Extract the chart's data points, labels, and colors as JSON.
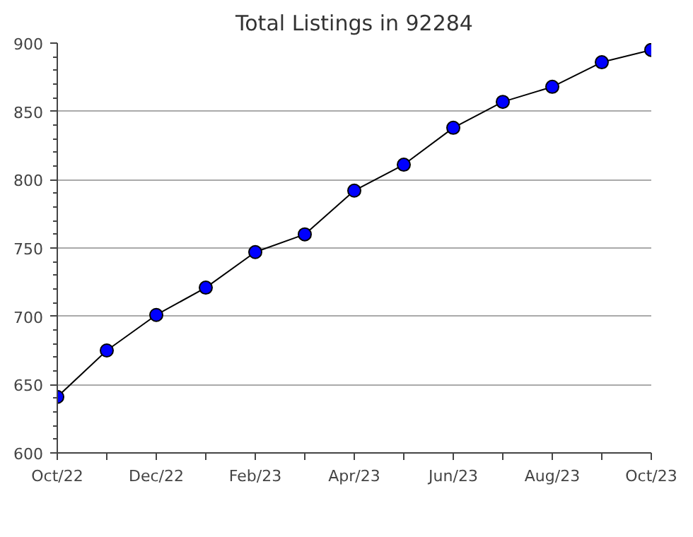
{
  "chart_data": {
    "type": "line",
    "title": "Total Listings in 92284",
    "categories": [
      "Oct/22",
      null,
      "Dec/22",
      null,
      "Feb/23",
      null,
      "Apr/23",
      null,
      "Jun/23",
      null,
      "Aug/23",
      null,
      "Oct/23"
    ],
    "series": [
      {
        "color": "#0000ff",
        "values": [
          641,
          675,
          701,
          721,
          747,
          760,
          792,
          811,
          838,
          857,
          868,
          886,
          895
        ]
      }
    ],
    "ylim": [
      600,
      900
    ],
    "yticks": [
      600,
      650,
      700,
      750,
      800,
      850,
      900
    ],
    "grid": "y",
    "marker": "circle",
    "line_style": "solid"
  }
}
